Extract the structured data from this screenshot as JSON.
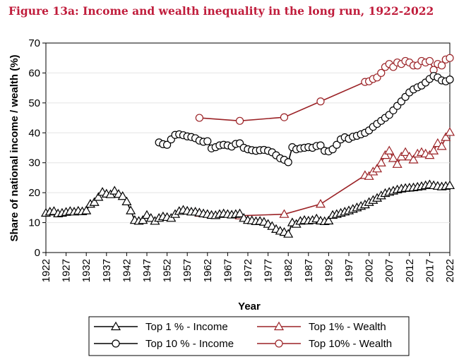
{
  "figure_title": "Figure 13a: Income and wealth inequality in the long run, 1922-2022",
  "colors": {
    "income": "#000000",
    "wealth": "#9b2226",
    "title": "#c01d3c",
    "grid": "#e4e4e4"
  },
  "chart_data": {
    "type": "line",
    "xlabel": "Year",
    "ylabel": "Share of national income / wealth (%)",
    "xlim": [
      1922,
      2022
    ],
    "ylim": [
      0,
      70
    ],
    "xticks": [
      1922,
      1927,
      1932,
      1937,
      1942,
      1947,
      1952,
      1957,
      1962,
      1967,
      1972,
      1977,
      1982,
      1987,
      1992,
      1997,
      2002,
      2007,
      2012,
      2017,
      2022
    ],
    "yticks": [
      0,
      10,
      20,
      30,
      40,
      50,
      60,
      70
    ],
    "grid": true,
    "legend_position": "bottom",
    "series": [
      {
        "name": "Top 1 %   - Income",
        "marker": "triangle",
        "color": "#000000",
        "x": [
          1922,
          1923,
          1924,
          1925,
          1926,
          1927,
          1928,
          1929,
          1930,
          1931,
          1932,
          1933,
          1934,
          1935,
          1936,
          1937,
          1938,
          1939,
          1940,
          1941,
          1942,
          1943,
          1944,
          1945,
          1946,
          1947,
          1948,
          1949,
          1950,
          1951,
          1952,
          1953,
          1954,
          1955,
          1956,
          1957,
          1958,
          1959,
          1960,
          1961,
          1962,
          1963,
          1964,
          1965,
          1966,
          1967,
          1968,
          1969,
          1970,
          1971,
          1972,
          1973,
          1974,
          1975,
          1976,
          1977,
          1978,
          1979,
          1980,
          1981,
          1982,
          1983,
          1984,
          1985,
          1986,
          1987,
          1988,
          1989,
          1990,
          1991,
          1992,
          1993,
          1994,
          1995,
          1996,
          1997,
          1998,
          1999,
          2000,
          2001,
          2002,
          2003,
          2004,
          2005,
          2006,
          2007,
          2008,
          2009,
          2010,
          2011,
          2012,
          2013,
          2014,
          2015,
          2016,
          2017,
          2018,
          2019,
          2020,
          2021,
          2022
        ],
        "y": [
          13.2,
          13.6,
          13.8,
          13.0,
          13.2,
          13.5,
          13.8,
          13.6,
          13.9,
          13.7,
          14.0,
          16.2,
          16.8,
          18.5,
          20.2,
          19.6,
          19.4,
          20.6,
          19.5,
          18.8,
          17.0,
          14.0,
          10.8,
          10.5,
          10.8,
          12.5,
          11.5,
          10.5,
          11.5,
          12.0,
          11.8,
          11.5,
          12.8,
          13.8,
          14.2,
          13.9,
          13.6,
          13.6,
          13.3,
          13.0,
          12.8,
          12.5,
          12.4,
          12.8,
          13.0,
          12.8,
          12.6,
          12.8,
          13.0,
          11.5,
          10.8,
          10.7,
          10.4,
          10.5,
          10.2,
          9.5,
          8.8,
          7.8,
          7.2,
          6.8,
          6.2,
          10.0,
          9.5,
          10.5,
          10.8,
          10.6,
          10.8,
          11.3,
          10.6,
          10.4,
          10.6,
          12.5,
          12.8,
          13.2,
          13.6,
          14.0,
          14.5,
          15.0,
          15.5,
          16.0,
          16.8,
          17.5,
          18.2,
          19.0,
          19.8,
          20.2,
          20.6,
          21.0,
          21.3,
          21.5,
          21.6,
          21.7,
          21.9,
          22.1,
          22.4,
          22.7,
          22.4,
          22.2,
          22.0,
          22.2,
          22.4
        ]
      },
      {
        "name": "Top 10 % - Income",
        "marker": "circle",
        "color": "#000000",
        "x": [
          1950,
          1951,
          1952,
          1953,
          1954,
          1955,
          1956,
          1957,
          1958,
          1959,
          1960,
          1961,
          1962,
          1963,
          1964,
          1965,
          1966,
          1967,
          1968,
          1969,
          1970,
          1971,
          1972,
          1973,
          1974,
          1975,
          1976,
          1977,
          1978,
          1979,
          1980,
          1981,
          1982,
          1983,
          1984,
          1985,
          1986,
          1987,
          1988,
          1989,
          1990,
          1991,
          1992,
          1993,
          1994,
          1995,
          1996,
          1997,
          1998,
          1999,
          2000,
          2001,
          2002,
          2003,
          2004,
          2005,
          2006,
          2007,
          2008,
          2009,
          2010,
          2011,
          2012,
          2013,
          2014,
          2015,
          2016,
          2017,
          2018,
          2019,
          2020,
          2021,
          2022
        ],
        "y": [
          36.8,
          36.2,
          36.0,
          37.8,
          39.3,
          39.5,
          39.2,
          38.8,
          38.6,
          38.2,
          37.4,
          37.0,
          37.2,
          34.8,
          35.2,
          35.8,
          36.0,
          35.8,
          35.4,
          36.3,
          36.5,
          35.0,
          34.5,
          34.2,
          34.0,
          34.2,
          34.3,
          34.0,
          33.5,
          32.5,
          31.5,
          31.0,
          30.2,
          35.2,
          34.5,
          34.8,
          35.0,
          35.2,
          35.0,
          35.6,
          35.8,
          34.0,
          33.8,
          34.5,
          36.0,
          37.8,
          38.5,
          38.0,
          38.7,
          39.0,
          39.5,
          40.0,
          40.8,
          42.0,
          43.0,
          44.0,
          45.0,
          46.0,
          47.5,
          49.0,
          50.5,
          52.0,
          53.5,
          54.5,
          55.2,
          55.8,
          56.8,
          58.0,
          59.0,
          58.5,
          57.5,
          57.2,
          57.8
        ]
      },
      {
        "name": "Top 1%   - Wealth",
        "marker": "triangle-hollow",
        "color": "#9b2226",
        "x": [
          1960,
          1970,
          1981,
          1990,
          2001,
          2002,
          2003,
          2004,
          2005,
          2006,
          2007,
          2008,
          2009,
          2010,
          2011,
          2012,
          2013,
          2014,
          2015,
          2016,
          2017,
          2018,
          2019,
          2020,
          2021,
          2022
        ],
        "y": [
          13.2,
          12.3,
          12.8,
          16.2,
          25.8,
          25.5,
          27.0,
          28.0,
          30.0,
          32.5,
          34.0,
          31.5,
          29.5,
          32.0,
          33.5,
          32.0,
          31.0,
          33.0,
          33.5,
          33.0,
          32.5,
          34.0,
          36.5,
          35.5,
          38.5,
          40.2
        ]
      },
      {
        "name": "Top 10% - Wealth",
        "marker": "circle-hollow",
        "color": "#9b2226",
        "x": [
          1960,
          1970,
          1981,
          1990,
          2001,
          2002,
          2003,
          2004,
          2005,
          2006,
          2007,
          2008,
          2009,
          2010,
          2011,
          2012,
          2013,
          2014,
          2015,
          2016,
          2017,
          2018,
          2019,
          2020,
          2021,
          2022
        ],
        "y": [
          45.0,
          44.0,
          45.2,
          50.5,
          57.0,
          57.2,
          58.0,
          58.5,
          60.0,
          62.0,
          63.0,
          62.0,
          63.5,
          63.0,
          64.0,
          63.5,
          62.5,
          62.5,
          64.0,
          63.5,
          64.0,
          61.0,
          63.0,
          62.5,
          64.5,
          65.0
        ]
      }
    ]
  }
}
